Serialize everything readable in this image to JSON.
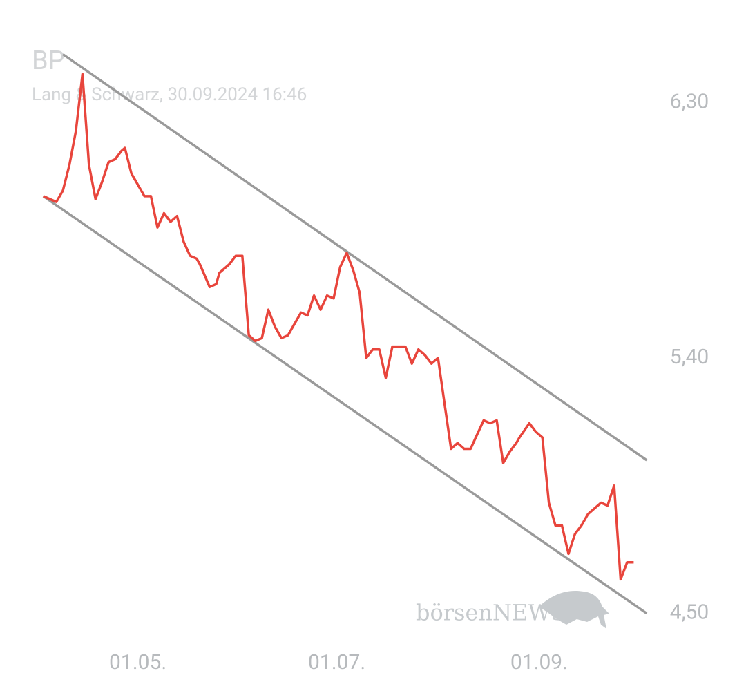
{
  "chart_data": {
    "type": "line",
    "title": "BP",
    "subtitle": "Lang & Schwarz, 30.09.2024 16:46",
    "watermark": "börsenNEWS",
    "color": "#e8453c",
    "x": [
      "02.04.",
      "06.04.",
      "08.04.",
      "10.04.",
      "12.04.",
      "14.04.",
      "16.04.",
      "18.04.",
      "20.04.",
      "22.04.",
      "24.04.",
      "26.04.",
      "27.04.",
      "29.04.",
      "01.05.",
      "03.05.",
      "05.05.",
      "07.05.",
      "09.05.",
      "11.05.",
      "13.05.",
      "15.05.",
      "17.05.",
      "19.05.",
      "20.05.",
      "23.05.",
      "25.05.",
      "26.05.",
      "29.05.",
      "31.05.",
      "02.06.",
      "04.06.",
      "06.06.",
      "08.06.",
      "10.06.",
      "12.06.",
      "14.06.",
      "16.06.",
      "18.06.",
      "20.06.",
      "22.06.",
      "24.06.",
      "26.06.",
      "28.06.",
      "30.06.",
      "02.07.",
      "04.07.",
      "06.07.",
      "08.07.",
      "10.07.",
      "12.07.",
      "14.07.",
      "16.07.",
      "18.07.",
      "20.07.",
      "22.07.",
      "24.07.",
      "26.07.",
      "28.07.",
      "30.07.",
      "01.08.",
      "03.08.",
      "05.08.",
      "07.08.",
      "09.08.",
      "11.08.",
      "13.08.",
      "15.08.",
      "17.08.",
      "19.08.",
      "21.08.",
      "23.08.",
      "25.08.",
      "26.08.",
      "29.08.",
      "31.08.",
      "02.09.",
      "04.09.",
      "06.09.",
      "08.09.",
      "10.09.",
      "12.09.",
      "14.09.",
      "16.09.",
      "18.09.",
      "20.09.",
      "22.09.",
      "24.09.",
      "26.09.",
      "28.09.",
      "30.09."
    ],
    "values": [
      5.97,
      5.95,
      5.99,
      6.08,
      6.2,
      6.4,
      6.08,
      5.96,
      6.02,
      6.09,
      6.1,
      6.13,
      6.14,
      6.05,
      6.01,
      5.97,
      5.97,
      5.86,
      5.91,
      5.88,
      5.9,
      5.81,
      5.76,
      5.75,
      5.73,
      5.65,
      5.66,
      5.7,
      5.73,
      5.76,
      5.76,
      5.48,
      5.46,
      5.47,
      5.57,
      5.51,
      5.47,
      5.48,
      5.52,
      5.56,
      5.55,
      5.62,
      5.57,
      5.62,
      5.61,
      5.72,
      5.77,
      5.71,
      5.63,
      5.4,
      5.43,
      5.43,
      5.33,
      5.44,
      5.44,
      5.44,
      5.38,
      5.43,
      5.41,
      5.38,
      5.4,
      5.24,
      5.08,
      5.1,
      5.08,
      5.08,
      5.13,
      5.18,
      5.17,
      5.18,
      5.03,
      5.07,
      5.1,
      5.12,
      5.17,
      5.14,
      5.12,
      4.89,
      4.81,
      4.81,
      4.71,
      4.78,
      4.81,
      4.85,
      4.87,
      4.89,
      4.88,
      4.95,
      4.62,
      4.68,
      4.68
    ],
    "channels": [
      {
        "color": "#9a9a9a",
        "x": [
          "08.04.",
          "04.10."
        ],
        "values": [
          6.47,
          5.04
        ]
      },
      {
        "color": "#9a9a9a",
        "x": [
          "02.04.",
          "04.10."
        ],
        "values": [
          5.97,
          4.5
        ]
      }
    ],
    "xlim": [
      "01.04.",
      "05.10."
    ],
    "xticks": [
      "01.05.",
      "01.07.",
      "01.09."
    ],
    "ylim": [
      4.47,
      6.52
    ],
    "yticks": [
      {
        "value": 4.5,
        "label": "4,50"
      },
      {
        "value": 5.4,
        "label": "5,40"
      },
      {
        "value": 6.3,
        "label": "6,30"
      }
    ]
  }
}
